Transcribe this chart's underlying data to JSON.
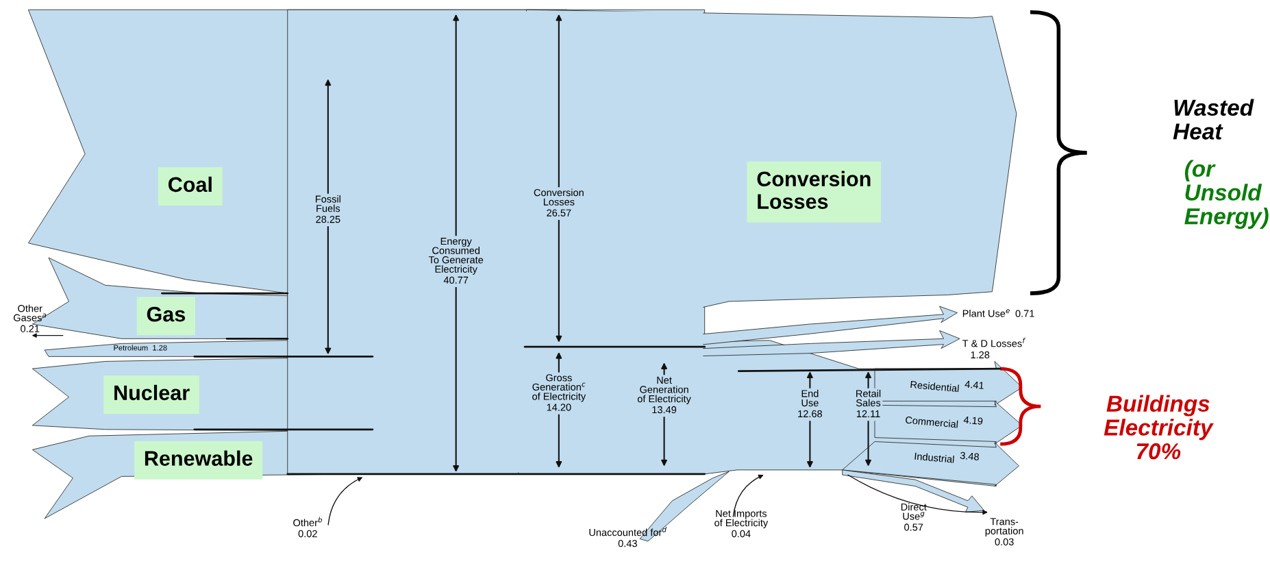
{
  "chart_data": {
    "type": "other",
    "color": "#c1dcee",
    "categories": [
      "Other Gases$^{a}$",
      "Petroleum",
      "Fossil\nFuels",
      "Energy\nConsumed\nTo Generate\nElectricity",
      "Conversion\nLosses",
      "Gross\nGeneration$^{c}$\nof Electricity",
      "Net\nGeneration\nof Electricity",
      "Plant Use$^{e}$",
      "T & D Losses$^{f}$",
      "End\nUse",
      "Retail\nSales",
      "Residential",
      "Commercial",
      "Industrial",
      "Direct\nUse$^{g}$",
      "Trans-\nportation",
      "Other$^{b}$",
      "Unaccounted for$^{d}$",
      "Net Imports\nof Electricity"
    ],
    "values": [
      0.21,
      1.28,
      28.25,
      40.77,
      26.57,
      14.2,
      13.49,
      0.71,
      1.28,
      12.68,
      12.11,
      4.41,
      4.19,
      3.48,
      0.57,
      0.03,
      0.02,
      0.43,
      0.04
    ],
    "value_labels": [
      "0.21",
      "1.28",
      "28.25",
      "40.77",
      "26.57",
      "14.20",
      "13.49",
      "0.71",
      "1.28",
      "12.68",
      "12.11",
      "4.41",
      "4.19",
      "3.48",
      "0.57",
      "0.03",
      "0.02",
      "0.43",
      "0.04"
    ],
    "data_labels": true,
    "annotations": [
      "Coal",
      "Gas",
      "Nuclear",
      "Renewable",
      "Conversion\nLosses",
      "Wasted\nHeat",
      "(or\nUnsold\nEnergy)",
      "Buildings\nElectricity\n70%"
    ]
  }
}
